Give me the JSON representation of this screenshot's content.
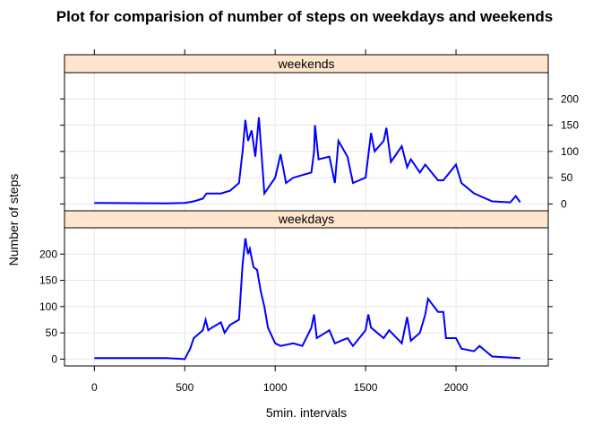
{
  "chart_data": {
    "type": "line",
    "title": "Plot for comparision of number of steps on weekdays and weekends",
    "x_label": "5min. intervals",
    "y_label": "Number of steps",
    "xlim": [
      -165,
      2510
    ],
    "ylim": [
      -13,
      250
    ],
    "xticks": [
      0,
      500,
      1000,
      1500,
      2000
    ],
    "yticks": [
      0,
      50,
      100,
      150,
      200
    ],
    "panels": [
      {
        "name": "weekends",
        "color": "#0000ff",
        "x": [
          0,
          400,
          500,
          550,
          600,
          620,
          700,
          750,
          800,
          820,
          835,
          850,
          870,
          890,
          910,
          940,
          1000,
          1030,
          1060,
          1100,
          1200,
          1215,
          1220,
          1240,
          1300,
          1330,
          1350,
          1400,
          1430,
          1500,
          1530,
          1550,
          1600,
          1615,
          1640,
          1700,
          1730,
          1750,
          1800,
          1830,
          1900,
          1930,
          2000,
          2030,
          2100,
          2200,
          2300,
          2330,
          2355
        ],
        "values": [
          2,
          1,
          2,
          5,
          10,
          20,
          20,
          25,
          40,
          100,
          160,
          120,
          140,
          90,
          165,
          20,
          50,
          95,
          40,
          50,
          60,
          100,
          150,
          85,
          90,
          40,
          120,
          90,
          40,
          50,
          135,
          100,
          120,
          145,
          80,
          110,
          70,
          85,
          60,
          75,
          45,
          45,
          75,
          40,
          20,
          5,
          3,
          15,
          3
        ]
      },
      {
        "name": "weekdays",
        "color": "#0000ff",
        "x": [
          0,
          400,
          500,
          530,
          550,
          600,
          615,
          630,
          650,
          700,
          720,
          750,
          800,
          820,
          835,
          850,
          860,
          880,
          900,
          920,
          940,
          960,
          1000,
          1030,
          1100,
          1150,
          1200,
          1215,
          1230,
          1300,
          1330,
          1400,
          1430,
          1500,
          1515,
          1530,
          1600,
          1630,
          1700,
          1730,
          1750,
          1800,
          1830,
          1845,
          1900,
          1930,
          1945,
          2000,
          2030,
          2100,
          2130,
          2200,
          2300,
          2355
        ],
        "values": [
          2,
          2,
          0,
          20,
          40,
          55,
          75,
          55,
          60,
          70,
          50,
          65,
          75,
          180,
          230,
          200,
          210,
          175,
          170,
          130,
          100,
          60,
          30,
          25,
          30,
          25,
          60,
          85,
          40,
          55,
          30,
          40,
          25,
          55,
          85,
          60,
          40,
          55,
          30,
          80,
          35,
          50,
          85,
          115,
          90,
          90,
          40,
          40,
          20,
          15,
          25,
          5,
          3,
          2
        ]
      }
    ]
  }
}
